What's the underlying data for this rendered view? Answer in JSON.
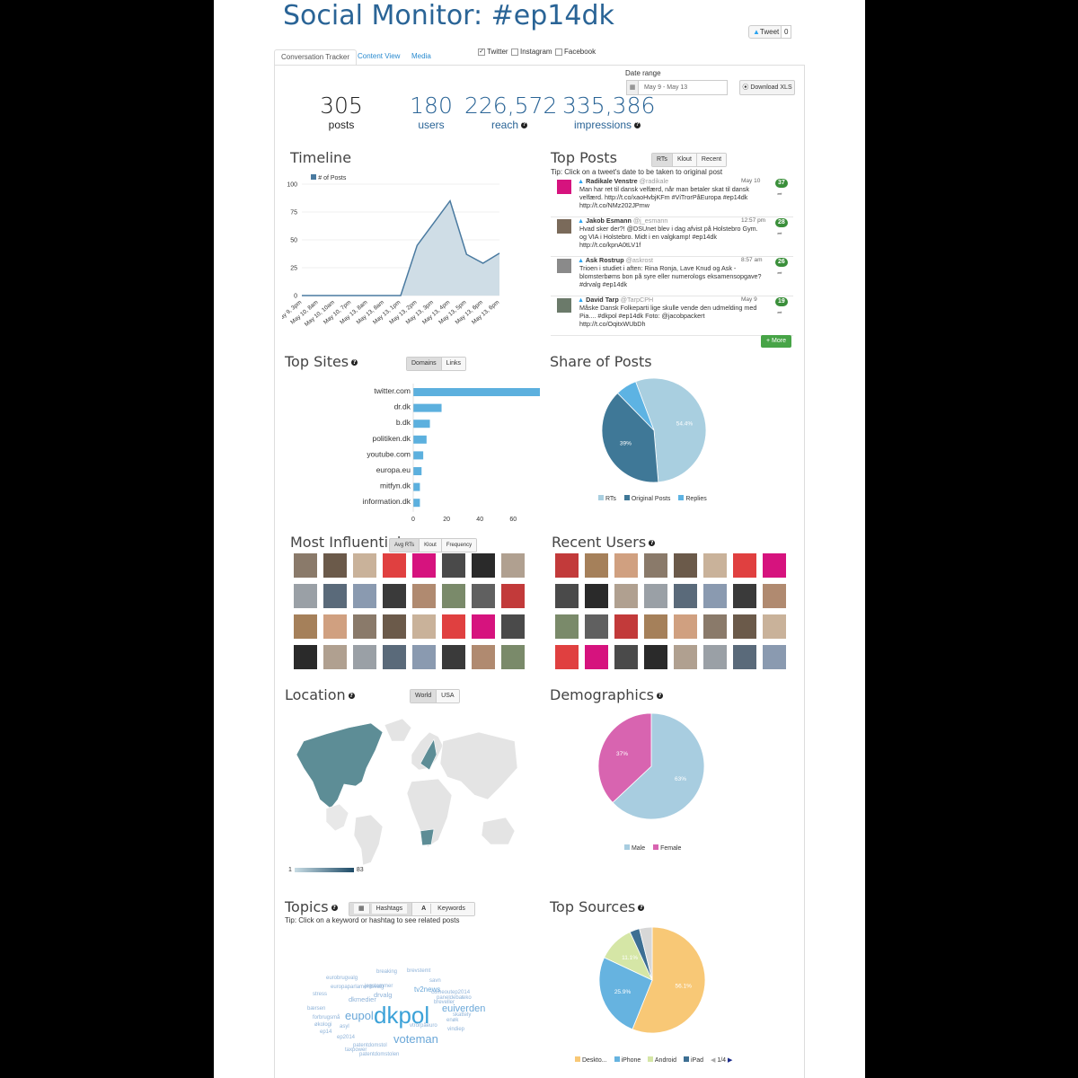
{
  "app": {
    "title": "Social Monitor: #ep14dk",
    "tweet_button": "Tweet",
    "tweet_count": "0"
  },
  "tabs": [
    {
      "label": "Conversation Tracker"
    },
    {
      "label": "Content View"
    },
    {
      "label": "Media"
    }
  ],
  "sources": [
    {
      "label": "Twitter",
      "checked": true
    },
    {
      "label": "Instagram",
      "checked": false
    },
    {
      "label": "Facebook",
      "checked": false
    }
  ],
  "date_range": {
    "label": "Date range",
    "value": "May 9 - May 13",
    "download": "Download XLS"
  },
  "stats": [
    {
      "value": "305",
      "label": "posts"
    },
    {
      "value": "180",
      "label": "users"
    },
    {
      "value": "226,572",
      "label": "reach"
    },
    {
      "value": "335,386",
      "label": "impressions"
    }
  ],
  "timeline": {
    "title": "Timeline",
    "legend": "# of Posts"
  },
  "top_posts": {
    "title": "Top Posts",
    "buttons": [
      "RTs",
      "Klout",
      "Recent"
    ],
    "tip": "Tip: Click on a tweet's date to be taken to original post",
    "more": "+ More",
    "posts": [
      {
        "name": "Radikale Venstre",
        "handle": "@radikale",
        "time": "May 10",
        "text": "Man har ret til dansk velfærd, når man betaler skat til dansk velfærd. http://t.co/xaoHvbjKFm #ViTrorPåEuropa #ep14dk http://t.co/NMz202JPmw",
        "count": "37",
        "color": "#d6137e"
      },
      {
        "name": "Jakob Esmann",
        "handle": "@j_esmann",
        "time": "12:57 pm",
        "text": "Hvad sker der?! @DSUnet blev i dag afvist på Holstebro Gym. og VIA i Holstebro. Midt i en valgkamp! #ep14dk http://t.co/kpnA0tLV1f",
        "count": "28",
        "color": "#7a6a5a"
      },
      {
        "name": "Ask Rostrup",
        "handle": "@askrost",
        "time": "8:57 am",
        "text": "Trioen i studiet i aften: Rina Ronja, Lave Knud og Ask - blomsterbøms bon på syre eller numerologs eksamensopgave? #drvalg #ep14dk",
        "count": "26",
        "color": "#8a8a8a"
      },
      {
        "name": "David Tarp",
        "handle": "@TarpCPH",
        "time": "May 9",
        "text": "Måske Dansk Folkeparti lige skulle vende den udmelding med Pia.... #dkpol #ep14dk Foto: @jacobpackert http://t.co/OqitxWUbDh",
        "count": "19",
        "color": "#6b7a6a"
      }
    ]
  },
  "top_sites": {
    "title": "Top Sites",
    "buttons": [
      "Domains",
      "Links"
    ]
  },
  "share_of_posts": {
    "title": "Share of Posts",
    "legend": [
      "RTs",
      "Original Posts",
      "Replies"
    ]
  },
  "most_influential": {
    "title": "Most Influential",
    "buttons": [
      "Avg RTs",
      "Klout",
      "Frequency"
    ]
  },
  "recent_users": {
    "title": "Recent Users"
  },
  "location": {
    "title": "Location",
    "buttons": [
      "World",
      "USA"
    ],
    "scale_min": "1",
    "scale_max": "83"
  },
  "demographics": {
    "title": "Demographics",
    "legend": [
      "Male",
      "Female"
    ]
  },
  "topics": {
    "title": "Topics",
    "buttons": [
      "Hashtags",
      "Keywords"
    ],
    "tip": "Tip: Click on a keyword or hashtag to see related posts",
    "words": [
      "dkpol",
      "eupol",
      "voteman",
      "euiverden",
      "tv2news",
      "dkmedier",
      "drvalg",
      "breaking",
      "brevstemt",
      "savn",
      "comeoutep2014",
      "jegstemmer",
      "europaparlamentsvalg",
      "eurobrugvalg",
      "stress",
      "bærsen",
      "forbrugsmå",
      "økologi",
      "ep14",
      "asyl",
      "ep2014",
      "patentdomstol",
      "taxpower",
      "patentdomstolen",
      "vtrorpåeuro",
      "vindiep",
      "breveller",
      "enøk",
      "paneldebat",
      "skattely",
      "eko"
    ]
  },
  "top_sources": {
    "title": "Top Sources",
    "legend": [
      "Deskto...",
      "iPhone",
      "Android",
      "iPad"
    ],
    "pager": "1/4"
  },
  "chart_data": [
    {
      "type": "area",
      "title": "",
      "series": [
        {
          "name": "# of Posts",
          "values": [
            0,
            0,
            0,
            0,
            0,
            0,
            0,
            45,
            65,
            85,
            37,
            29,
            38
          ]
        }
      ],
      "categories": [
        "May 9, 3pm",
        "May 10, 8am",
        "May 10, 10am",
        "May 10, 7pm",
        "May 13, 8am",
        "May 13, 8am",
        "May 13, 1pm",
        "May 13, 2pm",
        "May 13, 3pm",
        "May 13, 4pm",
        "May 13, 5pm",
        "May 13, 6pm",
        "May 13, 6pm"
      ],
      "y_ticks": [
        0,
        25,
        50,
        75,
        100
      ],
      "ylim": [
        0,
        100
      ]
    },
    {
      "type": "bar",
      "title": "",
      "categories": [
        "twitter.com",
        "dr.dk",
        "b.dk",
        "politiken.dk",
        "youtube.com",
        "europa.eu",
        "mitfyn.dk",
        "information.dk"
      ],
      "values": [
        76,
        17,
        10,
        8,
        6,
        5,
        4,
        4
      ],
      "x_ticks": [
        0,
        20,
        40,
        60
      ],
      "xlim": [
        0,
        76
      ]
    },
    {
      "type": "pie",
      "title": "",
      "labels": [
        "RTs",
        "Original Posts",
        "Replies"
      ],
      "values": [
        54.4,
        39,
        6.6
      ],
      "colors": [
        "#a9cfe0",
        "#3f7897",
        "#5db3e3"
      ]
    },
    {
      "type": "pie",
      "title": "",
      "labels": [
        "Male",
        "Female"
      ],
      "values": [
        63,
        37
      ],
      "colors": [
        "#a8cde0",
        "#d864b0"
      ]
    },
    {
      "type": "pie",
      "title": "",
      "labels": [
        "Deskto...",
        "iPhone",
        "Android",
        "iPad",
        "Other"
      ],
      "values": [
        56.1,
        25.9,
        11.1,
        3,
        3.9
      ],
      "colors": [
        "#f8c876",
        "#66b3e0",
        "#d5e6a6",
        "#3d6f93",
        "#d7d7d7"
      ]
    }
  ]
}
